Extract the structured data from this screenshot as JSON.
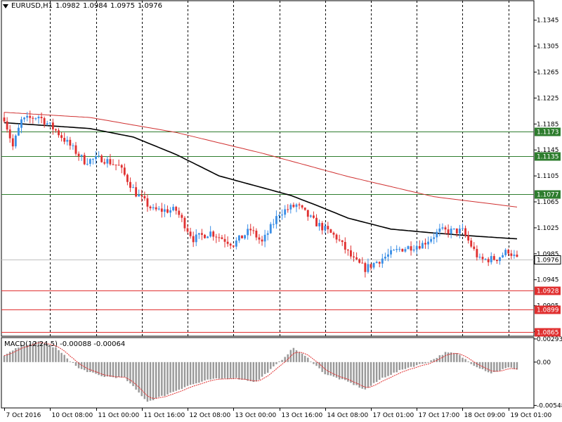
{
  "header": {
    "symbol": "EURUSD,H1",
    "open": "1.0982",
    "high": "1.0984",
    "low": "1.0975",
    "close": "1.0976"
  },
  "macd_header": {
    "label": "MACD(12,24,5)",
    "main": "-0.00088",
    "signal": "-0.00064"
  },
  "colors": {
    "bull": "#3b8fe6",
    "bear": "#e03030",
    "ma_slow": "#d03030",
    "ma_fast": "#000000",
    "support_lines": "#e03030",
    "resistance_lines": "#2e7d2e",
    "grid": "#000000"
  },
  "chart_data": [
    {
      "type": "candlestick",
      "title": "EURUSD,H1",
      "ylim": [
        1.0858,
        1.1375
      ],
      "y_ticks": [
        "1.1345",
        "1.1305",
        "1.1265",
        "1.1225",
        "1.1185",
        "1.1145",
        "1.1105",
        "1.1065",
        "1.1025",
        "1.0985",
        "1.0945",
        "1.0905",
        "1.0865"
      ],
      "x_ticks": [
        "7 Oct 2016",
        "10 Oct 08:00",
        "11 Oct 00:00",
        "11 Oct 16:00",
        "12 Oct 08:00",
        "13 Oct 00:00",
        "13 Oct 16:00",
        "14 Oct 08:00",
        "17 Oct 01:00",
        "17 Oct 17:00",
        "18 Oct 09:00",
        "19 Oct 01:00"
      ],
      "grid": "vertical dashed",
      "candle_count": 180,
      "close_path": [
        {
          "bar": 0,
          "price": 1.1195
        },
        {
          "bar": 3,
          "price": 1.115
        },
        {
          "bar": 6,
          "price": 1.119
        },
        {
          "bar": 12,
          "price": 1.1197
        },
        {
          "bar": 18,
          "price": 1.1175
        },
        {
          "bar": 28,
          "price": 1.1128
        },
        {
          "bar": 34,
          "price": 1.1132
        },
        {
          "bar": 40,
          "price": 1.112
        },
        {
          "bar": 46,
          "price": 1.1078
        },
        {
          "bar": 52,
          "price": 1.1052
        },
        {
          "bar": 60,
          "price": 1.1052
        },
        {
          "bar": 66,
          "price": 1.1008
        },
        {
          "bar": 72,
          "price": 1.1018
        },
        {
          "bar": 80,
          "price": 1.1
        },
        {
          "bar": 86,
          "price": 1.1022
        },
        {
          "bar": 90,
          "price": 1.1002
        },
        {
          "bar": 96,
          "price": 1.1048
        },
        {
          "bar": 102,
          "price": 1.106
        },
        {
          "bar": 108,
          "price": 1.1035
        },
        {
          "bar": 116,
          "price": 1.101
        },
        {
          "bar": 122,
          "price": 1.0975
        },
        {
          "bar": 126,
          "price": 1.0962
        },
        {
          "bar": 132,
          "price": 1.0978
        },
        {
          "bar": 138,
          "price": 1.0992
        },
        {
          "bar": 146,
          "price": 1.1
        },
        {
          "bar": 152,
          "price": 1.102
        },
        {
          "bar": 160,
          "price": 1.102
        },
        {
          "bar": 166,
          "price": 1.0975
        },
        {
          "bar": 172,
          "price": 1.0978
        },
        {
          "bar": 176,
          "price": 1.099
        },
        {
          "bar": 179,
          "price": 1.0976
        }
      ],
      "moving_averages": [
        {
          "name": "MA slow",
          "color": "#d03030",
          "points": [
            {
              "bar": 0,
              "price": 1.1203
            },
            {
              "bar": 30,
              "price": 1.1195
            },
            {
              "bar": 60,
              "price": 1.1172
            },
            {
              "bar": 90,
              "price": 1.114
            },
            {
              "bar": 120,
              "price": 1.1104
            },
            {
              "bar": 150,
              "price": 1.1073
            },
            {
              "bar": 179,
              "price": 1.1057
            }
          ]
        },
        {
          "name": "MA fast",
          "color": "#000000",
          "points": [
            {
              "bar": 0,
              "price": 1.1187
            },
            {
              "bar": 30,
              "price": 1.1178
            },
            {
              "bar": 45,
              "price": 1.1165
            },
            {
              "bar": 60,
              "price": 1.1138
            },
            {
              "bar": 75,
              "price": 1.1105
            },
            {
              "bar": 90,
              "price": 1.1087
            },
            {
              "bar": 100,
              "price": 1.1075
            },
            {
              "bar": 110,
              "price": 1.1058
            },
            {
              "bar": 120,
              "price": 1.104
            },
            {
              "bar": 135,
              "price": 1.1023
            },
            {
              "bar": 150,
              "price": 1.1017
            },
            {
              "bar": 165,
              "price": 1.1012
            },
            {
              "bar": 179,
              "price": 1.1008
            }
          ]
        }
      ],
      "horizontal_levels": [
        {
          "price": 1.1173,
          "label": "1.1173",
          "color": "#2e7d2e"
        },
        {
          "price": 1.1135,
          "label": "1.1135",
          "color": "#2e7d2e"
        },
        {
          "price": 1.1077,
          "label": "1.1077",
          "color": "#2e7d2e"
        },
        {
          "price": 1.0928,
          "label": "1.0928",
          "color": "#e03030"
        },
        {
          "price": 1.0899,
          "label": "1.0899",
          "color": "#e03030"
        },
        {
          "price": 1.0865,
          "label": "1.0865",
          "color": "#e03030"
        }
      ],
      "current_price": {
        "price": 1.0976,
        "label": "1.0976"
      }
    },
    {
      "type": "bar",
      "title": "MACD(12,24,5)",
      "ylim": [
        -0.0058,
        0.0031
      ],
      "y_ticks": [
        "0.00293",
        "0.00",
        "-0.00548"
      ],
      "histogram_path": [
        {
          "bar": 0,
          "value": 0.0008
        },
        {
          "bar": 6,
          "value": 0.0021
        },
        {
          "bar": 12,
          "value": 0.0026
        },
        {
          "bar": 18,
          "value": 0.0018
        },
        {
          "bar": 26,
          "value": -0.0008
        },
        {
          "bar": 34,
          "value": -0.0018
        },
        {
          "bar": 42,
          "value": -0.002
        },
        {
          "bar": 50,
          "value": -0.005
        },
        {
          "bar": 56,
          "value": -0.0042
        },
        {
          "bar": 64,
          "value": -0.003
        },
        {
          "bar": 72,
          "value": -0.0022
        },
        {
          "bar": 80,
          "value": -0.002
        },
        {
          "bar": 88,
          "value": -0.0025
        },
        {
          "bar": 96,
          "value": 0.0
        },
        {
          "bar": 101,
          "value": 0.0018
        },
        {
          "bar": 106,
          "value": 0.0005
        },
        {
          "bar": 112,
          "value": -0.0015
        },
        {
          "bar": 120,
          "value": -0.0025
        },
        {
          "bar": 126,
          "value": -0.0035
        },
        {
          "bar": 132,
          "value": -0.002
        },
        {
          "bar": 140,
          "value": -0.0008
        },
        {
          "bar": 148,
          "value": 0.0
        },
        {
          "bar": 154,
          "value": 0.0012
        },
        {
          "bar": 158,
          "value": 0.0011
        },
        {
          "bar": 164,
          "value": -0.0004
        },
        {
          "bar": 170,
          "value": -0.0014
        },
        {
          "bar": 176,
          "value": -0.0007
        },
        {
          "bar": 179,
          "value": -0.0009
        }
      ],
      "signal_color": "#e03030",
      "histogram_color": "#999999"
    }
  ]
}
